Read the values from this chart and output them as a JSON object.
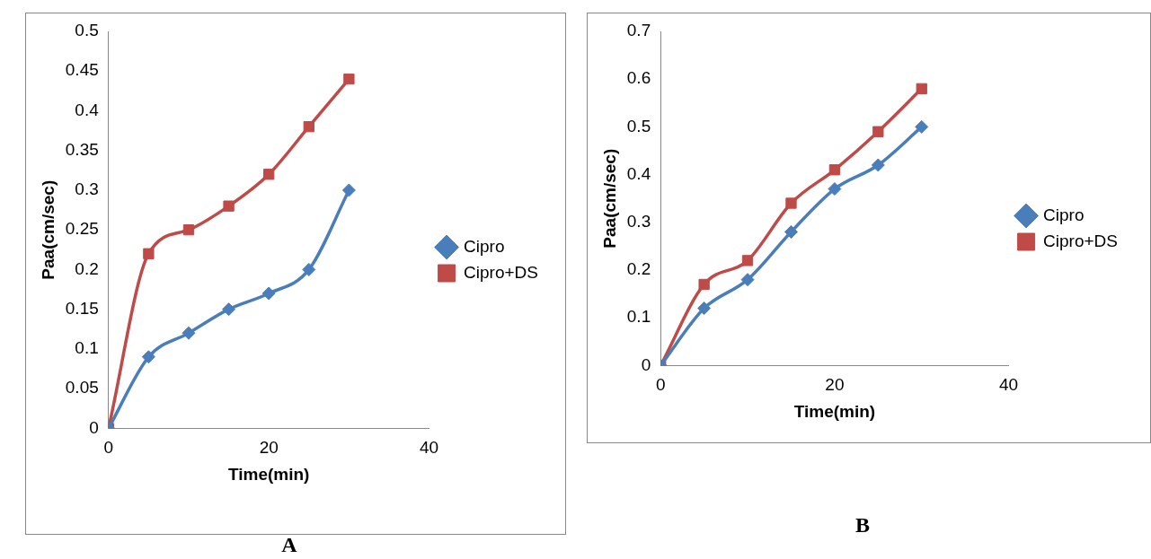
{
  "chart_data": [
    {
      "type": "line",
      "title": "A",
      "xlabel": "Time(min)",
      "ylabel": "Paa(cm/sec)",
      "x": [
        0,
        5,
        10,
        15,
        20,
        25,
        30
      ],
      "xlim": [
        0,
        40
      ],
      "xticks": [
        0,
        20,
        40
      ],
      "ylim": [
        0,
        0.5
      ],
      "yticks": [
        0,
        0.05,
        0.1,
        0.15,
        0.2,
        0.25,
        0.3,
        0.35,
        0.4,
        0.45,
        0.5
      ],
      "grid": false,
      "legend": "right",
      "series": [
        {
          "name": "Cipro",
          "color": "#4a7ebb",
          "marker": "diamond",
          "values": [
            0,
            0.09,
            0.12,
            0.15,
            0.17,
            0.2,
            0.3
          ]
        },
        {
          "name": "Cipro+DS",
          "color": "#be4b48",
          "marker": "square",
          "values": [
            0,
            0.22,
            0.25,
            0.28,
            0.32,
            0.38,
            0.44
          ]
        }
      ]
    },
    {
      "type": "line",
      "title": "B",
      "xlabel": "Time(min)",
      "ylabel": "Paa(cm/sec)",
      "x": [
        0,
        5,
        10,
        15,
        20,
        25,
        30
      ],
      "xlim": [
        0,
        40
      ],
      "xticks": [
        0,
        20,
        40
      ],
      "ylim": [
        0,
        0.7
      ],
      "yticks": [
        0,
        0.1,
        0.2,
        0.3,
        0.4,
        0.5,
        0.6,
        0.7
      ],
      "grid": false,
      "legend": "right",
      "series": [
        {
          "name": "Cipro",
          "color": "#4a7ebb",
          "marker": "diamond",
          "values": [
            0,
            0.12,
            0.18,
            0.28,
            0.37,
            0.42,
            0.5
          ]
        },
        {
          "name": "Cipro+DS",
          "color": "#be4b48",
          "marker": "square",
          "values": [
            0,
            0.17,
            0.22,
            0.34,
            0.41,
            0.49,
            0.58
          ]
        }
      ]
    }
  ]
}
